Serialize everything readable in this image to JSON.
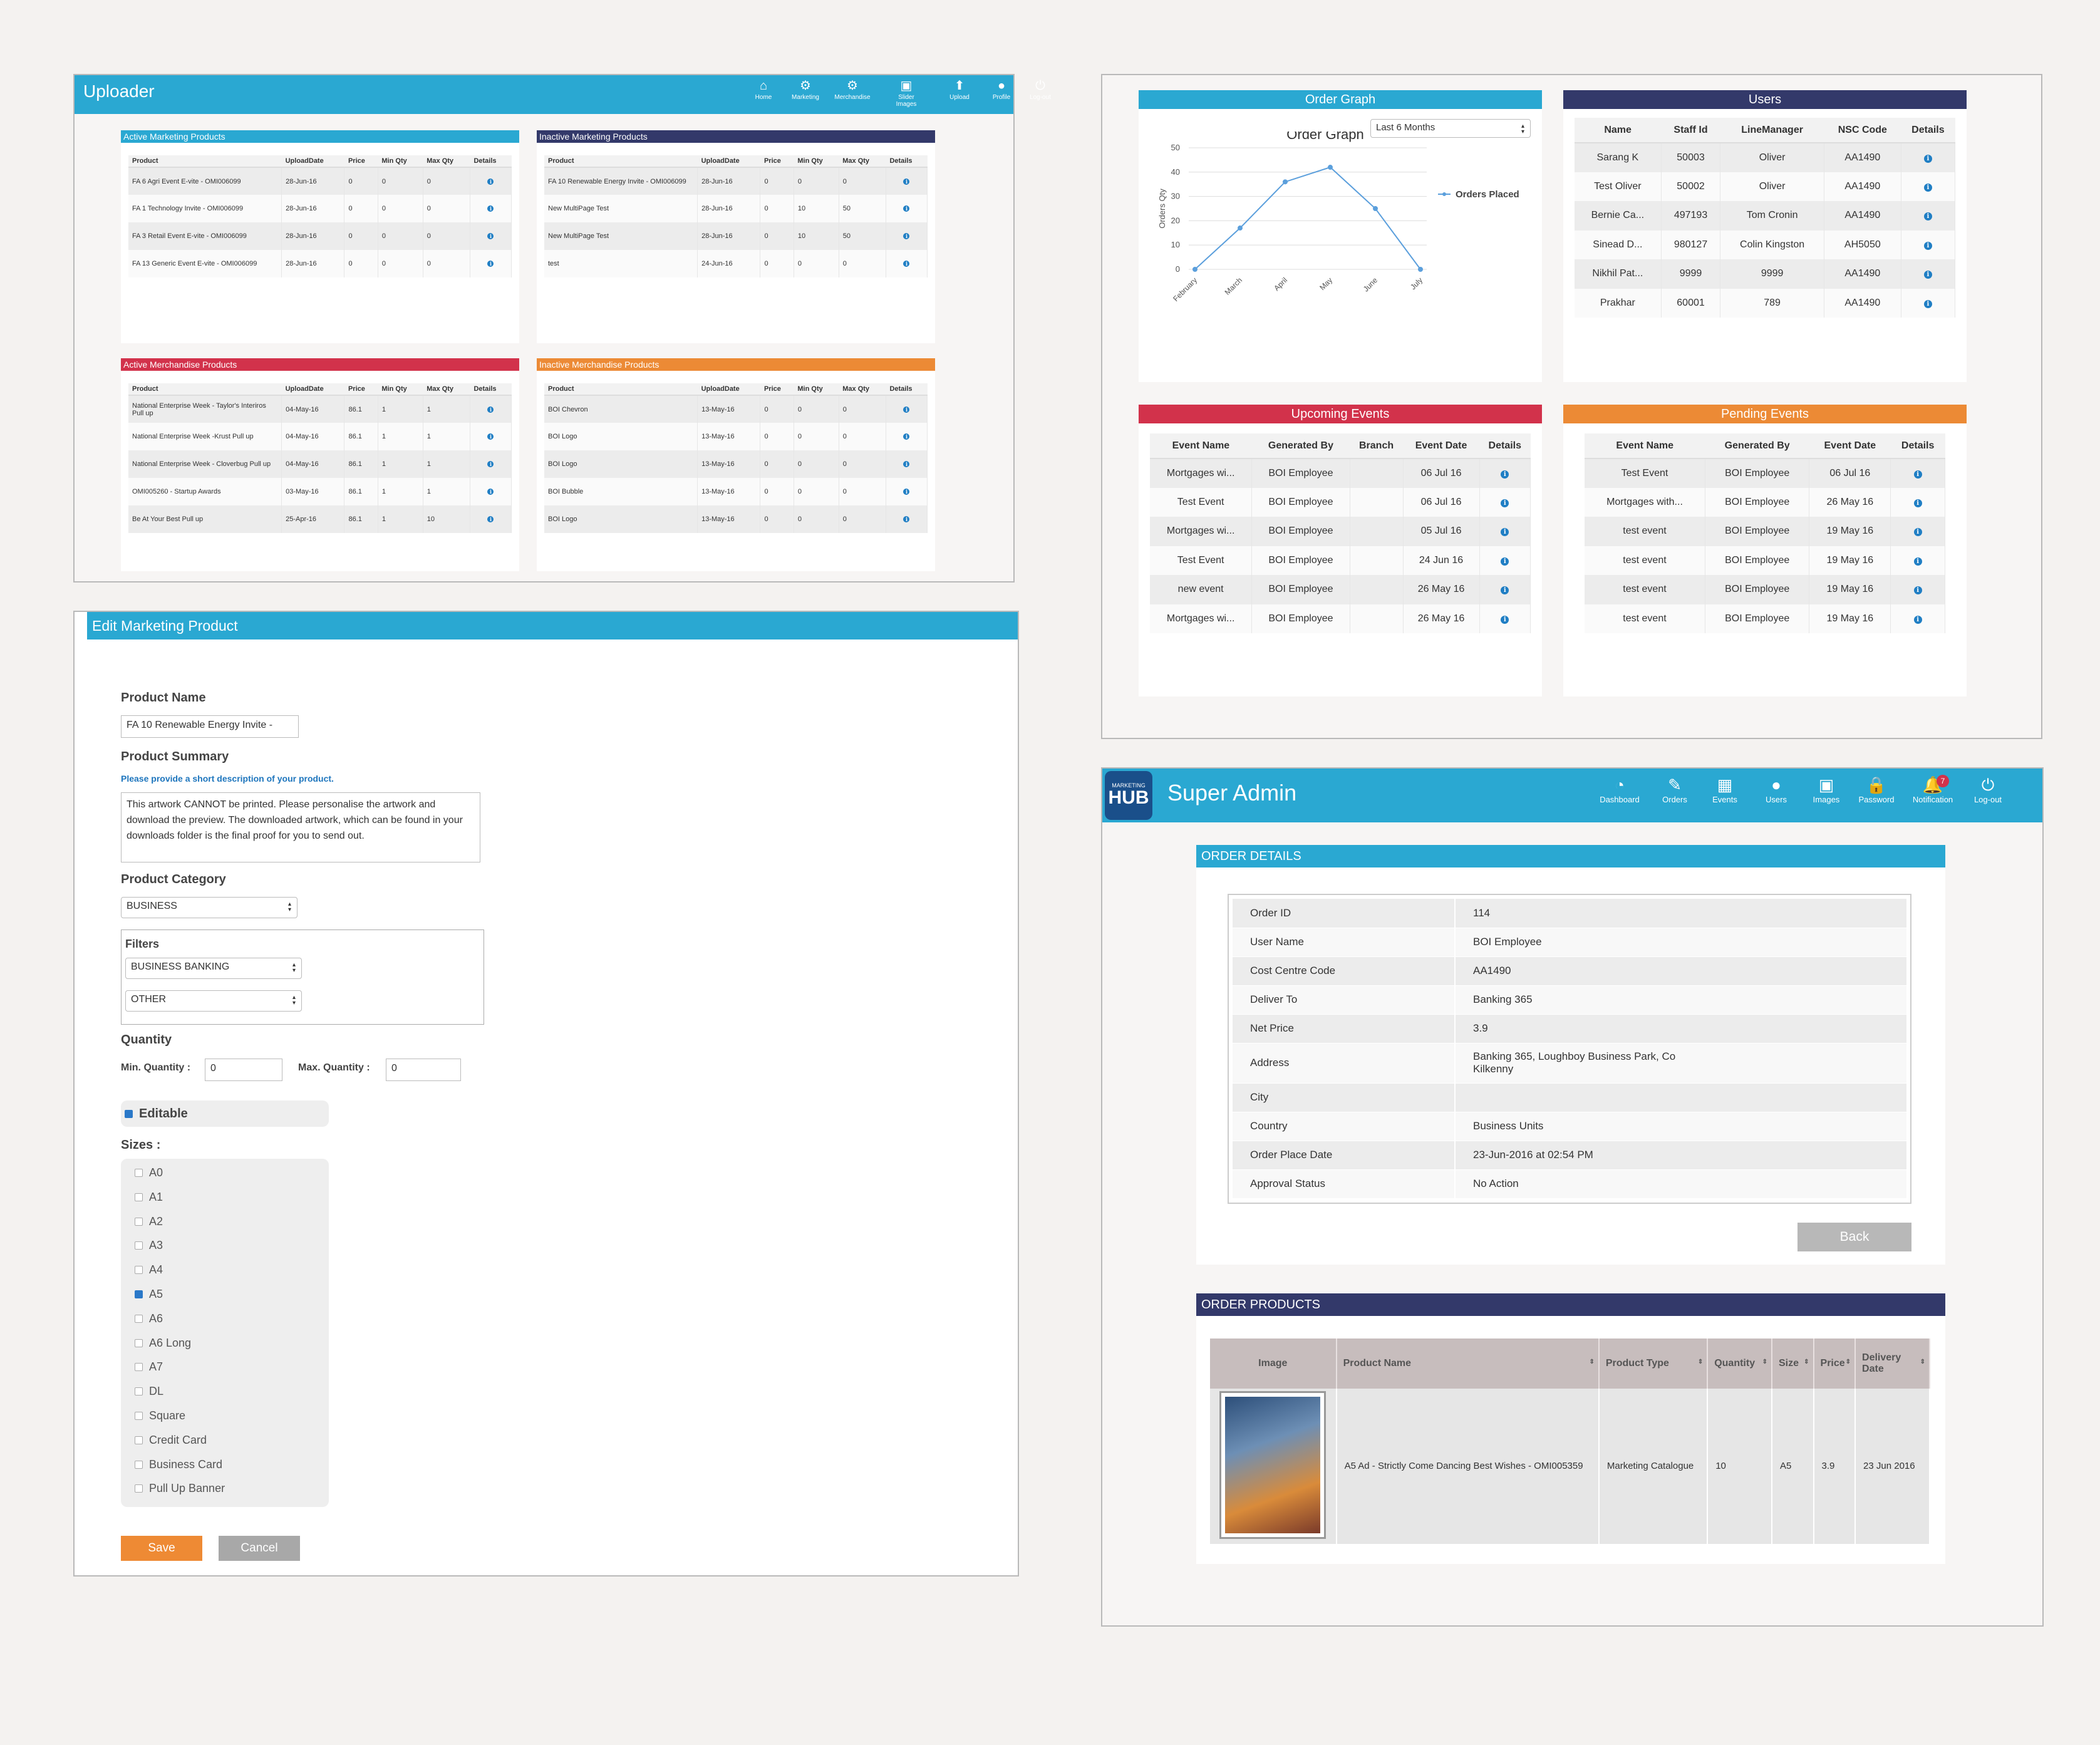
{
  "uploader": {
    "title": "Uploader",
    "nav": [
      {
        "icon": "home-icon",
        "glyph": "⌂",
        "label": "Home"
      },
      {
        "icon": "marketing-icon",
        "glyph": "⚙",
        "label": "Marketing"
      },
      {
        "icon": "merchandise-icon",
        "glyph": "⚙",
        "label": "Merchandise"
      },
      {
        "icon": "slider-images-icon",
        "glyph": "▣",
        "label": "Slider Images"
      },
      {
        "icon": "upload-icon",
        "glyph": "⬆",
        "label": "Upload"
      },
      {
        "icon": "profile-icon",
        "glyph": "●",
        "label": "Profile"
      },
      {
        "icon": "logout-icon",
        "glyph": "⏻",
        "label": "Log-out"
      }
    ],
    "active_marketing": {
      "title": "Active Marketing Products",
      "color": "#2aa8d2",
      "columns": [
        "Product",
        "UploadDate",
        "Price",
        "Min Qty",
        "Max Qty",
        "Details"
      ],
      "rows": [
        [
          "FA 6 Agri Event E-vite - OMI006099",
          "28-Jun-16",
          "0",
          "0",
          "0"
        ],
        [
          "FA 1 Technology Invite - OMI006099",
          "28-Jun-16",
          "0",
          "0",
          "0"
        ],
        [
          "FA 3 Retail Event E-vite - OMI006099",
          "28-Jun-16",
          "0",
          "0",
          "0"
        ],
        [
          "FA 13 Generic Event E-vite - OMI006099",
          "28-Jun-16",
          "0",
          "0",
          "0"
        ]
      ]
    },
    "inactive_marketing": {
      "title": "Inactive Marketing Products",
      "color": "#33396a",
      "columns": [
        "Product",
        "UploadDate",
        "Price",
        "Min Qty",
        "Max Qty",
        "Details"
      ],
      "rows": [
        [
          "FA 10 Renewable Energy Invite - OMI006099",
          "28-Jun-16",
          "0",
          "0",
          "0"
        ],
        [
          "New MultiPage Test",
          "28-Jun-16",
          "0",
          "10",
          "50"
        ],
        [
          "New MultiPage Test",
          "28-Jun-16",
          "0",
          "10",
          "50"
        ],
        [
          "test",
          "24-Jun-16",
          "0",
          "0",
          "0"
        ]
      ]
    },
    "active_merch": {
      "title": "Active Merchandise Products",
      "color": "#d2324b",
      "columns": [
        "Product",
        "UploadDate",
        "Price",
        "Min Qty",
        "Max Qty",
        "Details"
      ],
      "rows": [
        [
          "National Enterprise Week - Taylor's Interiros Pull up",
          "04-May-16",
          "86.1",
          "1",
          "1"
        ],
        [
          "National Enterprise Week -Krust Pull up",
          "04-May-16",
          "86.1",
          "1",
          "1"
        ],
        [
          "National Enterprise Week - Cloverbug Pull up",
          "04-May-16",
          "86.1",
          "1",
          "1"
        ],
        [
          "OMI005260 - Startup Awards",
          "03-May-16",
          "86.1",
          "1",
          "1"
        ],
        [
          "Be At Your Best Pull up",
          "25-Apr-16",
          "86.1",
          "1",
          "10"
        ]
      ]
    },
    "inactive_merch": {
      "title": "Inactive Merchandise Products",
      "color": "#ec8a35",
      "columns": [
        "Product",
        "UploadDate",
        "Price",
        "Min Qty",
        "Max Qty",
        "Details"
      ],
      "rows": [
        [
          "BOI Chevron",
          "13-May-16",
          "0",
          "0",
          "0"
        ],
        [
          "BOI Logo",
          "13-May-16",
          "0",
          "0",
          "0"
        ],
        [
          "BOI Logo",
          "13-May-16",
          "0",
          "0",
          "0"
        ],
        [
          "BOI Bubble",
          "13-May-16",
          "0",
          "0",
          "0"
        ],
        [
          "BOI Logo",
          "13-May-16",
          "0",
          "0",
          "0"
        ]
      ]
    }
  },
  "edit": {
    "title": "Edit Marketing Product",
    "product_name_label": "Product Name",
    "product_name_value": "FA 10 Renewable Energy Invite -",
    "summary_label": "Product Summary",
    "summary_hint": "Please provide a short description of your product.",
    "summary_value": "This artwork CANNOT be printed. Please personalise the artwork and download the preview. The downloaded artwork, which can be found in your downloads folder is the final proof for you to send out.",
    "category_label": "Product Category",
    "category_value": "BUSINESS",
    "filters_label": "Filters",
    "filter1": "BUSINESS BANKING",
    "filter2": "OTHER",
    "quantity_label": "Quantity",
    "min_label": "Min. Quantity :",
    "min_value": "0",
    "max_label": "Max. Quantity :",
    "max_value": "0",
    "editable_label": "Editable",
    "sizes_label": "Sizes :",
    "sizes": [
      {
        "label": "A0",
        "checked": false
      },
      {
        "label": "A1",
        "checked": false
      },
      {
        "label": "A2",
        "checked": false
      },
      {
        "label": "A3",
        "checked": false
      },
      {
        "label": "A4",
        "checked": false
      },
      {
        "label": "A5",
        "checked": true
      },
      {
        "label": "A6",
        "checked": false
      },
      {
        "label": "A6 Long",
        "checked": false
      },
      {
        "label": "A7",
        "checked": false
      },
      {
        "label": "DL",
        "checked": false
      },
      {
        "label": "Square",
        "checked": false
      },
      {
        "label": "Credit Card",
        "checked": false
      },
      {
        "label": "Business Card",
        "checked": false
      },
      {
        "label": "Pull Up Banner",
        "checked": false
      }
    ],
    "save": "Save",
    "cancel": "Cancel"
  },
  "dashboard": {
    "order_graph": {
      "title": "Order Graph",
      "range": "Last 6 Months",
      "chart_title": "Order Graph",
      "y_label": "Orders Qty",
      "legend": "Orders Placed"
    },
    "users": {
      "title": "Users",
      "columns": [
        "Name",
        "Staff Id",
        "LineManager",
        "NSC Code",
        "Details"
      ],
      "rows": [
        [
          "Sarang K",
          "50003",
          "Oliver",
          "AA1490"
        ],
        [
          "Test Oliver",
          "50002",
          "Oliver",
          "AA1490"
        ],
        [
          "Bernie Ca...",
          "497193",
          "Tom Cronin",
          "AA1490"
        ],
        [
          "Sinead D...",
          "980127",
          "Colin Kingston",
          "AH5050"
        ],
        [
          "Nikhil Pat...",
          "9999",
          "9999",
          "AA1490"
        ],
        [
          "Prakhar",
          "60001",
          "789",
          "AA1490"
        ]
      ]
    },
    "upcoming": {
      "title": "Upcoming Events",
      "columns": [
        "Event Name",
        "Generated By",
        "Branch",
        "Event Date",
        "Details"
      ],
      "rows": [
        [
          "Mortgages wi...",
          "BOI Employee",
          "",
          "06 Jul 16"
        ],
        [
          "Test Event",
          "BOI Employee",
          "",
          "06 Jul 16"
        ],
        [
          "Mortgages wi...",
          "BOI Employee",
          "",
          "05 Jul 16"
        ],
        [
          "Test Event",
          "BOI Employee",
          "",
          "24 Jun 16"
        ],
        [
          "new event",
          "BOI Employee",
          "",
          "26 May 16"
        ],
        [
          "Mortgages wi...",
          "BOI Employee",
          "",
          "26 May 16"
        ]
      ]
    },
    "pending": {
      "title": "Pending Events",
      "columns": [
        "Event Name",
        "Generated By",
        "Event Date",
        "Details"
      ],
      "rows": [
        [
          "Test Event",
          "BOI Employee",
          "06 Jul 16"
        ],
        [
          "Mortgages with...",
          "BOI Employee",
          "26 May 16"
        ],
        [
          "test event",
          "BOI Employee",
          "19 May 16"
        ],
        [
          "test event",
          "BOI Employee",
          "19 May 16"
        ],
        [
          "test event",
          "BOI Employee",
          "19 May 16"
        ],
        [
          "test event",
          "BOI Employee",
          "19 May 16"
        ]
      ]
    }
  },
  "chart_data": {
    "type": "line",
    "title": "Order Graph",
    "ylabel": "Orders Qty",
    "categories": [
      "February",
      "March",
      "April",
      "May",
      "June",
      "July"
    ],
    "series": [
      {
        "name": "Orders Placed",
        "values": [
          0,
          17,
          36,
          42,
          25,
          0
        ]
      }
    ],
    "ylim": [
      0,
      50
    ],
    "yticks": [
      0,
      10,
      20,
      30,
      40,
      50
    ],
    "grid": true,
    "legend": "right"
  },
  "admin": {
    "logo_top": "MARKETING",
    "logo_main": "HUB",
    "title": "Super Admin",
    "nav": [
      {
        "icon": "dashboard-icon",
        "glyph": "◔",
        "label": "Dashboard"
      },
      {
        "icon": "orders-icon",
        "glyph": "✎",
        "label": "Orders"
      },
      {
        "icon": "events-icon",
        "glyph": "▦",
        "label": "Events"
      },
      {
        "icon": "users-icon",
        "glyph": "●",
        "label": "Users"
      },
      {
        "icon": "images-icon",
        "glyph": "▣",
        "label": "Images"
      },
      {
        "icon": "password-icon",
        "glyph": "🔒",
        "label": "Password"
      },
      {
        "icon": "notification-icon",
        "glyph": "🔔",
        "label": "Notification",
        "badge": "7"
      },
      {
        "icon": "logout-icon",
        "glyph": "⏻",
        "label": "Log-out"
      }
    ],
    "order_details_title": "ORDER DETAILS",
    "details": [
      [
        "Order ID",
        "114"
      ],
      [
        "User Name",
        "BOI Employee"
      ],
      [
        "Cost Centre Code",
        "AA1490"
      ],
      [
        "Deliver To",
        "Banking 365"
      ],
      [
        "Net Price",
        "3.9"
      ],
      [
        "Address",
        "Banking 365, Loughboy Business Park, Co Kilkenny"
      ],
      [
        "City",
        ""
      ],
      [
        "Country",
        "Business Units"
      ],
      [
        "Order Place Date",
        "23-Jun-2016 at 02:54 PM"
      ],
      [
        "Approval Status",
        "No Action"
      ]
    ],
    "back": "Back",
    "order_products_title": "ORDER PRODUCTS",
    "product_columns": [
      "Image",
      "Product Name",
      "Product Type",
      "Quantity",
      "Size",
      "Price",
      "Delivery Date"
    ],
    "product_row": {
      "name": "A5 Ad - Strictly Come Dancing Best Wishes - OMI005359",
      "type": "Marketing Catalogue",
      "quantity": "10",
      "size": "A5",
      "price": "3.9",
      "date": "23 Jun 2016"
    }
  }
}
